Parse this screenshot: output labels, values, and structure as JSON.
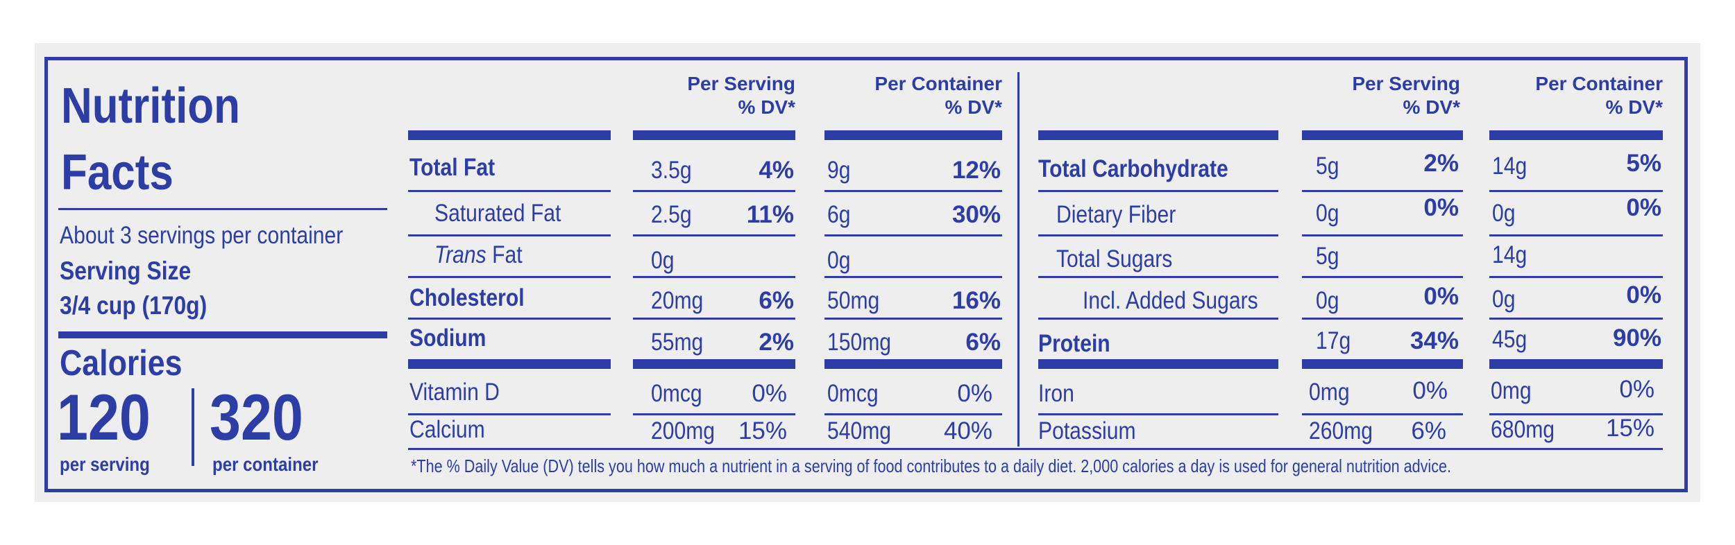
{
  "colors": {
    "ink": "#2c3da6",
    "panel": "#eeeeee"
  },
  "title": {
    "line1": "Nutrition",
    "line2": "Facts"
  },
  "servings_per_container": "About 3 servings per container",
  "serving_size_label": "Serving Size",
  "serving_size_value": "3/4 cup (170g)",
  "calories": {
    "label": "Calories",
    "per_serving": "120",
    "per_container": "320",
    "per_serving_label": "per serving",
    "per_container_label": "per container"
  },
  "headers": {
    "per_serving_1": "Per Serving",
    "per_serving_2": "% DV*",
    "per_container_1": "Per Container",
    "per_container_2": "% DV*"
  },
  "left_rows": [
    {
      "name": "Total Fat",
      "s_amt": "3.5g",
      "s_dv": "4%",
      "c_amt": "9g",
      "c_dv": "12%"
    },
    {
      "name": "Saturated Fat",
      "s_amt": "2.5g",
      "s_dv": "11%",
      "c_amt": "6g",
      "c_dv": "30%"
    },
    {
      "name_italic": "Trans",
      "name": "Fat",
      "s_amt": "0g",
      "s_dv": "",
      "c_amt": "0g",
      "c_dv": ""
    },
    {
      "name": "Cholesterol",
      "s_amt": "20mg",
      "s_dv": "6%",
      "c_amt": "50mg",
      "c_dv": "16%"
    },
    {
      "name": "Sodium",
      "s_amt": "55mg",
      "s_dv": "2%",
      "c_amt": "150mg",
      "c_dv": "6%"
    },
    {
      "name": "Vitamin D",
      "s_amt": "0mcg",
      "s_dv": "0%",
      "c_amt": "0mcg",
      "c_dv": "0%"
    },
    {
      "name": "Calcium",
      "s_amt": "200mg",
      "s_dv": "15%",
      "c_amt": "540mg",
      "c_dv": "40%"
    }
  ],
  "right_rows": [
    {
      "name": "Total Carbohydrate",
      "s_amt": "5g",
      "s_dv": "2%",
      "c_amt": "14g",
      "c_dv": "5%"
    },
    {
      "name": "Dietary Fiber",
      "s_amt": "0g",
      "s_dv": "0%",
      "c_amt": "0g",
      "c_dv": "0%"
    },
    {
      "name": "Total Sugars",
      "s_amt": "5g",
      "s_dv": "",
      "c_amt": "14g",
      "c_dv": ""
    },
    {
      "name": "Incl. Added Sugars",
      "s_amt": "0g",
      "s_dv": "0%",
      "c_amt": "0g",
      "c_dv": "0%"
    },
    {
      "name": "Protein",
      "s_amt": "17g",
      "s_dv": "34%",
      "c_amt": "45g",
      "c_dv": "90%"
    },
    {
      "name": "Iron",
      "s_amt": "0mg",
      "s_dv": "0%",
      "c_amt": "0mg",
      "c_dv": "0%"
    },
    {
      "name": "Potassium",
      "s_amt": "260mg",
      "s_dv": "6%",
      "c_amt": "680mg",
      "c_dv": "15%"
    }
  ],
  "footnote": "*The % Daily Value (DV) tells you how much a nutrient in a serving of food contributes to a daily diet. 2,000 calories a day is used for general nutrition advice."
}
